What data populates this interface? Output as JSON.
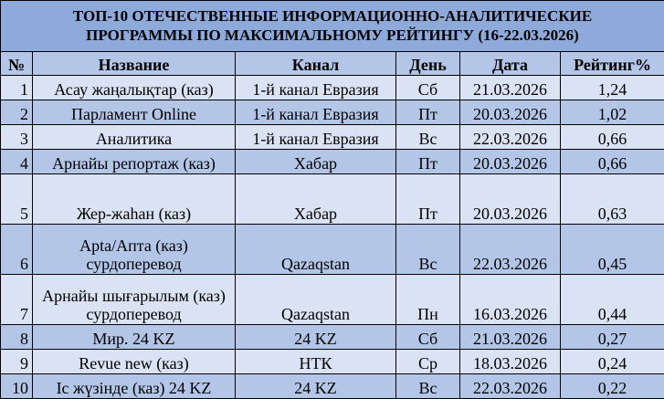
{
  "title_line1": "ТОП-10 ОТЕЧЕСТВЕННЫЕ ИНФОРМАЦИОННО-АНАЛИТИЧЕСКИЕ",
  "title_line2": "ПРОГРАММЫ ПО МАКСИМАЛЬНОМУ РЕЙТИНГУ (16-22.03.2026)",
  "headers": [
    "№",
    "Название",
    "Канал",
    "День",
    "Дата",
    "Рейтинг%"
  ],
  "colors": {
    "title_bg": "#8eaadb",
    "header_bg": "#b4c6e7",
    "row_light": "#dae3f3",
    "row_dark": "#b4c6e7"
  },
  "rows": [
    {
      "n": "1",
      "name": "Асау жаңалықтар (каз)",
      "channel": "1-й канал Евразия",
      "day": "Сб",
      "date": "21.03.2026",
      "rating": "1,24"
    },
    {
      "n": "2",
      "name": "Парламент Online",
      "channel": "1-й канал Евразия",
      "day": "Пт",
      "date": "20.03.2026",
      "rating": "1,02"
    },
    {
      "n": "3",
      "name": "Аналитика",
      "channel": "1-й канал Евразия",
      "day": "Вс",
      "date": "22.03.2026",
      "rating": "0,66"
    },
    {
      "n": "4",
      "name": "Арнайы репортаж (каз)",
      "channel": "Хабар",
      "day": "Пт",
      "date": "20.03.2026",
      "rating": "0,66"
    },
    {
      "n": "5",
      "name": "Жер-жаһан (каз)",
      "channel": "Хабар",
      "day": "Пт",
      "date": "20.03.2026",
      "rating": "0,63"
    },
    {
      "n": "6",
      "name": "Apta/Апта (каз) сурдоперевод",
      "channel": "Qazaqstan",
      "day": "Вс",
      "date": "22.03.2026",
      "rating": "0,45"
    },
    {
      "n": "7",
      "name": "Арнайы шығарылым (каз) сурдоперевод",
      "channel": "Qazaqstan",
      "day": "Пн",
      "date": "16.03.2026",
      "rating": "0,44"
    },
    {
      "n": "8",
      "name": "Мир. 24 KZ",
      "channel": "24 KZ",
      "day": "Сб",
      "date": "21.03.2026",
      "rating": "0,27"
    },
    {
      "n": "9",
      "name": "Revue new (каз)",
      "channel": "НТК",
      "day": "Ср",
      "date": "18.03.2026",
      "rating": "0,24"
    },
    {
      "n": "10",
      "name": "Іс жүзінде (каз) 24 KZ",
      "channel": "24 KZ",
      "day": "Вс",
      "date": "22.03.2026",
      "rating": "0,22"
    }
  ]
}
